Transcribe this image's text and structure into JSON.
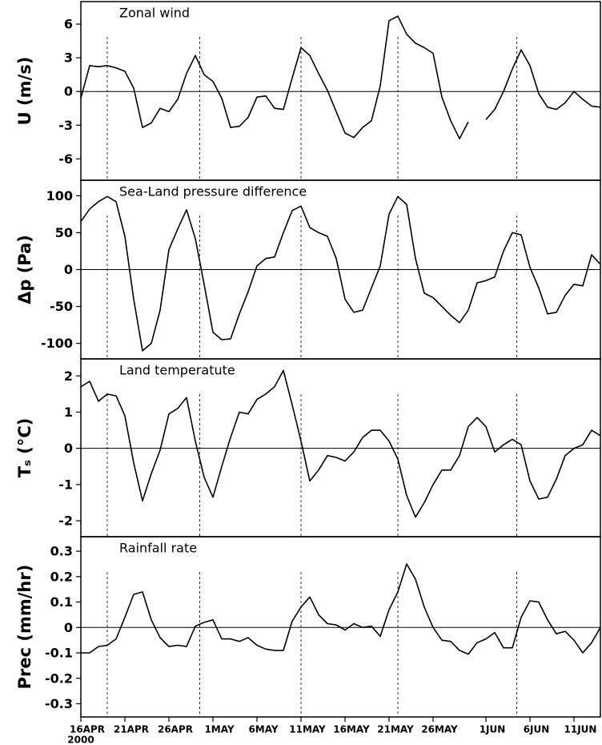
{
  "chart_data": [
    {
      "type": "line",
      "title": "Zonal wind",
      "ylabel": "U (m/s)",
      "color": "#000000",
      "zero_line": true,
      "xlim": [
        0,
        59
      ],
      "ylim": [
        -7.9,
        8
      ],
      "yticks": [
        -6,
        -3,
        0,
        3,
        6
      ],
      "vlines": [
        3,
        13.5,
        25,
        36,
        49.5
      ],
      "x": [
        0,
        1,
        2,
        3,
        4,
        5,
        6,
        7,
        8,
        9,
        10,
        11,
        12,
        13,
        14,
        15,
        16,
        17,
        18,
        19,
        20,
        21,
        22,
        23,
        24,
        25,
        26,
        27,
        28,
        29,
        30,
        31,
        32,
        33,
        34,
        35,
        36,
        37,
        38,
        39,
        40,
        41,
        42,
        43,
        44,
        45,
        46,
        47,
        48,
        49,
        50,
        51,
        52,
        53,
        54,
        55,
        56,
        57,
        58,
        59
      ],
      "values": [
        -0.6,
        2.3,
        2.2,
        2.3,
        2.1,
        1.8,
        0.3,
        -3.2,
        -2.8,
        -1.5,
        -1.8,
        -0.7,
        1.6,
        3.2,
        1.5,
        0.9,
        -0.6,
        -3.2,
        -3.1,
        -2.3,
        -0.5,
        -0.4,
        -1.5,
        -1.6,
        1.2,
        3.9,
        3.2,
        1.6,
        0.1,
        -1.8,
        -3.7,
        -4.1,
        -3.2,
        -2.6,
        0.5,
        6.3,
        6.7,
        5.1,
        4.3,
        3.9,
        3.4,
        -0.5,
        -2.6,
        -4.2,
        -2.7,
        null,
        -2.5,
        -1.6,
        0,
        2.0,
        3.7,
        2.3,
        -0.2,
        -1.4,
        -1.6,
        -1.0,
        0,
        -0.7,
        -1.3,
        -1.4
      ]
    },
    {
      "type": "line",
      "title": "Sea-Land pressure difference",
      "ylabel": "Δp (Pa)",
      "color": "#000000",
      "zero_line": true,
      "xlim": [
        0,
        59
      ],
      "ylim": [
        -121,
        121
      ],
      "yticks": [
        -100,
        -50,
        0,
        50,
        100
      ],
      "vlines": [
        3,
        13.5,
        25,
        36,
        49.5
      ],
      "x": [
        0,
        1,
        2,
        3,
        4,
        5,
        6,
        7,
        8,
        9,
        10,
        11,
        12,
        13,
        14,
        15,
        16,
        17,
        18,
        19,
        20,
        21,
        22,
        23,
        24,
        25,
        26,
        27,
        28,
        29,
        30,
        31,
        32,
        33,
        34,
        35,
        36,
        37,
        38,
        39,
        40,
        41,
        42,
        43,
        44,
        45,
        46,
        47,
        48,
        49,
        50,
        51,
        52,
        53,
        54,
        55,
        56,
        57,
        58,
        59
      ],
      "values": [
        65,
        82,
        92,
        99,
        92,
        45,
        -40,
        -110,
        -100,
        -55,
        27,
        55,
        81,
        42,
        -20,
        -85,
        -95,
        -94,
        -60,
        -30,
        5,
        15,
        17,
        50,
        80,
        86,
        57,
        50,
        45,
        15,
        -40,
        -58,
        -55,
        -25,
        5,
        75,
        99,
        88,
        15,
        -32,
        -38,
        -50,
        -62,
        -72,
        -55,
        -18,
        -15,
        -10,
        25,
        50,
        47,
        3,
        -25,
        -60,
        -58,
        -35,
        -20,
        -22,
        20,
        7
      ]
    },
    {
      "type": "line",
      "title": "Land temperatute",
      "ylabel": "Tₛ (°C)",
      "color": "#000000",
      "zero_line": true,
      "xlim": [
        0,
        59
      ],
      "ylim": [
        -2.44,
        2.47
      ],
      "yticks": [
        -2,
        -1,
        0,
        1,
        2
      ],
      "vlines": [
        3,
        13.5,
        25,
        36,
        49.5
      ],
      "x": [
        0,
        1,
        2,
        3,
        4,
        5,
        6,
        7,
        8,
        9,
        10,
        11,
        12,
        13,
        14,
        15,
        16,
        17,
        18,
        19,
        20,
        21,
        22,
        23,
        24,
        25,
        26,
        27,
        28,
        29,
        30,
        31,
        32,
        33,
        34,
        35,
        36,
        37,
        38,
        39,
        40,
        41,
        42,
        43,
        44,
        45,
        46,
        47,
        48,
        49,
        50,
        51,
        52,
        53,
        54,
        55,
        56,
        57,
        58,
        59
      ],
      "values": [
        1.7,
        1.85,
        1.3,
        1.5,
        1.45,
        0.9,
        -0.4,
        -1.45,
        -0.7,
        -0.05,
        0.95,
        1.1,
        1.4,
        0.2,
        -0.8,
        -1.35,
        -0.5,
        0.3,
        1.0,
        0.95,
        1.35,
        1.5,
        1.7,
        2.15,
        1.2,
        0.2,
        -0.9,
        -0.6,
        -0.2,
        -0.25,
        -0.35,
        -0.1,
        0.3,
        0.5,
        0.5,
        0.2,
        -0.3,
        -1.3,
        -1.9,
        -1.5,
        -1.0,
        -0.6,
        -0.6,
        -0.2,
        0.6,
        0.85,
        0.6,
        -0.1,
        0.1,
        0.25,
        0.1,
        -0.9,
        -1.4,
        -1.35,
        -0.85,
        -0.2,
        0,
        0.1,
        0.5,
        0.35
      ]
    },
    {
      "type": "line",
      "title": "Rainfall rate",
      "ylabel": "Prec (mm/hr)",
      "color": "#000000",
      "zero_line": true,
      "xlim": [
        0,
        59
      ],
      "ylim": [
        -0.352,
        0.357
      ],
      "yticks": [
        -0.3,
        -0.2,
        -0.1,
        0,
        0.1,
        0.2,
        0.3
      ],
      "vlines": [
        3,
        13.5,
        25,
        36,
        49.5
      ],
      "xticks": [
        {
          "value": 0,
          "label": "16APR"
        },
        {
          "value": 5,
          "label": "21APR"
        },
        {
          "value": 10,
          "label": "26APR"
        },
        {
          "value": 15,
          "label": "1MAY"
        },
        {
          "value": 20,
          "label": "6MAY"
        },
        {
          "value": 25,
          "label": "11MAY"
        },
        {
          "value": 30,
          "label": "16MAY"
        },
        {
          "value": 35,
          "label": "21MAY"
        },
        {
          "value": 40,
          "label": "26MAY"
        },
        {
          "value": 46,
          "label": "1JUN"
        },
        {
          "value": 51,
          "label": "6JUN"
        },
        {
          "value": 56,
          "label": "11JUN"
        }
      ],
      "x_sublabel": "2000",
      "x": [
        0,
        1,
        2,
        3,
        4,
        5,
        6,
        7,
        8,
        9,
        10,
        11,
        12,
        13,
        14,
        15,
        16,
        17,
        18,
        19,
        20,
        21,
        22,
        23,
        24,
        25,
        26,
        27,
        28,
        29,
        30,
        31,
        32,
        33,
        34,
        35,
        36,
        37,
        38,
        39,
        40,
        41,
        42,
        43,
        44,
        45,
        46,
        47,
        48,
        49,
        50,
        51,
        52,
        53,
        54,
        55,
        56,
        57,
        58,
        59
      ],
      "values": [
        -0.1,
        -0.1,
        -0.075,
        -0.07,
        -0.045,
        0.04,
        0.13,
        0.14,
        0.03,
        -0.04,
        -0.075,
        -0.07,
        -0.075,
        0.005,
        0.02,
        0.03,
        -0.045,
        -0.045,
        -0.055,
        -0.04,
        -0.07,
        -0.085,
        -0.09,
        -0.09,
        0.025,
        0.08,
        0.12,
        0.05,
        0.015,
        0.01,
        -0.01,
        0.015,
        0,
        0.005,
        -0.035,
        0.07,
        0.14,
        0.25,
        0.19,
        0.08,
        0,
        -0.05,
        -0.055,
        -0.09,
        -0.105,
        -0.06,
        -0.045,
        -0.02,
        -0.08,
        -0.08,
        0.04,
        0.105,
        0.1,
        0.03,
        -0.025,
        -0.015,
        -0.05,
        -0.1,
        -0.06,
        0
      ]
    }
  ]
}
